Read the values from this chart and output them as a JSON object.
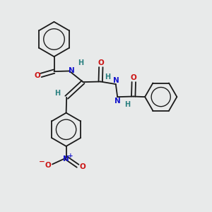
{
  "bg_color": "#e8eaea",
  "bond_color": "#1a1a1a",
  "nitrogen_color": "#1414cc",
  "oxygen_color": "#cc1414",
  "hydrogen_color": "#2a8080",
  "lw": 1.3,
  "figsize": [
    3.0,
    3.0
  ],
  "dpi": 100,
  "xlim": [
    0,
    10
  ],
  "ylim": [
    0,
    10
  ]
}
